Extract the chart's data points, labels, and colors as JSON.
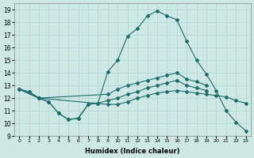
{
  "xlabel": "Humidex (Indice chaleur)",
  "background_color": "#cde8e5",
  "grid_color": "#b0d4d0",
  "line_color": "#1a6b6b",
  "xlim": [
    -0.5,
    23.5
  ],
  "ylim": [
    9,
    19.5
  ],
  "yticks": [
    9,
    10,
    11,
    12,
    13,
    14,
    15,
    16,
    17,
    18,
    19
  ],
  "xticks": [
    0,
    1,
    2,
    3,
    4,
    5,
    6,
    7,
    8,
    9,
    10,
    11,
    12,
    13,
    14,
    15,
    16,
    17,
    18,
    19,
    20,
    21,
    22,
    23
  ],
  "line_peak_x": [
    0,
    2,
    3,
    4,
    5,
    6,
    7,
    8,
    9,
    10,
    11,
    12,
    13,
    14,
    15,
    16,
    17,
    18,
    19,
    20,
    21,
    22,
    23
  ],
  "line_peak_y": [
    12.7,
    12.0,
    11.7,
    10.8,
    10.3,
    10.4,
    11.5,
    11.6,
    14.1,
    15.0,
    16.9,
    17.5,
    18.5,
    18.9,
    18.5,
    18.2,
    16.5,
    15.0,
    13.9,
    12.6,
    11.0,
    10.1,
    9.4
  ],
  "line_slow_x": [
    0,
    1,
    2,
    9,
    10,
    11,
    12,
    13,
    14,
    15,
    16,
    17,
    18,
    19
  ],
  "line_slow_y": [
    12.7,
    12.5,
    12.0,
    12.3,
    12.7,
    13.0,
    13.2,
    13.4,
    13.6,
    13.8,
    14.0,
    13.5,
    13.3,
    13.0
  ],
  "line_mid_x": [
    0,
    2,
    3,
    4,
    5,
    6,
    7,
    8,
    9,
    10,
    11,
    12,
    13,
    14,
    15,
    16,
    17,
    18,
    19
  ],
  "line_mid_y": [
    12.7,
    12.0,
    11.7,
    10.8,
    10.3,
    10.4,
    11.5,
    11.6,
    11.8,
    12.0,
    12.3,
    12.5,
    12.8,
    13.0,
    13.2,
    13.4,
    13.0,
    12.8,
    12.6
  ],
  "line_flat_x": [
    0,
    1,
    2,
    9,
    10,
    11,
    12,
    13,
    14,
    15,
    16,
    17,
    18,
    19,
    20,
    21,
    22,
    23
  ],
  "line_flat_y": [
    12.7,
    12.5,
    12.0,
    11.5,
    11.5,
    11.7,
    12.0,
    12.2,
    12.4,
    12.5,
    12.6,
    12.5,
    12.4,
    12.3,
    12.2,
    12.1,
    11.8,
    11.6
  ]
}
